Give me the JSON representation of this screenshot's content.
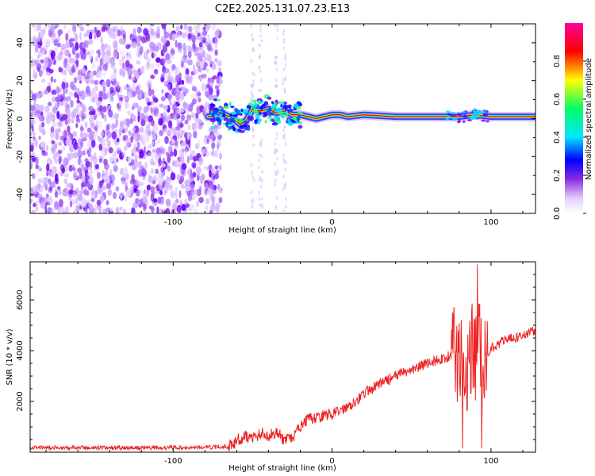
{
  "figure": {
    "title": "C2E2.2025.131.07.23.E13"
  },
  "chart_data": [
    {
      "type": "heatmap",
      "xlabel": "Height of straight line (km)",
      "ylabel": "Frequency (Hz)",
      "xlim": [
        -190,
        128
      ],
      "ylim": [
        -50,
        50
      ],
      "xticks": [
        -100,
        0,
        100
      ],
      "xtick_labels": [
        "-100",
        "0",
        "100"
      ],
      "yticks": [
        -40,
        -20,
        0,
        20,
        40
      ],
      "ytick_labels": [
        "-40",
        "-20",
        "0",
        "20",
        "40"
      ],
      "noise_region_x": [
        -190,
        -70
      ],
      "ridge": [
        {
          "x": -75,
          "f": 4
        },
        {
          "x": -70,
          "f": 3
        },
        {
          "x": -62,
          "f": 0
        },
        {
          "x": -58,
          "f": -3
        },
        {
          "x": -54,
          "f": -1
        },
        {
          "x": -50,
          "f": 5
        },
        {
          "x": -45,
          "f": 4
        },
        {
          "x": -40,
          "f": 5
        },
        {
          "x": -35,
          "f": 3
        },
        {
          "x": -30,
          "f": 4
        },
        {
          "x": -25,
          "f": 2
        },
        {
          "x": -20,
          "f": 2
        },
        {
          "x": -15,
          "f": 1
        },
        {
          "x": -10,
          "f": 0
        },
        {
          "x": -5,
          "f": 1
        },
        {
          "x": 0,
          "f": 2
        },
        {
          "x": 5,
          "f": 2
        },
        {
          "x": 10,
          "f": 1
        },
        {
          "x": 20,
          "f": 2
        },
        {
          "x": 40,
          "f": 1
        },
        {
          "x": 60,
          "f": 1
        },
        {
          "x": 80,
          "f": 1
        },
        {
          "x": 90,
          "f": 2
        },
        {
          "x": 100,
          "f": 1
        },
        {
          "x": 128,
          "f": 1
        }
      ],
      "colorbar": {
        "label": "Normalized spectral amplitude",
        "range": [
          0,
          1
        ],
        "ticks": [
          0.0,
          0.2,
          0.4,
          0.6,
          0.8
        ],
        "tick_labels": [
          "0.0",
          "0.2",
          "0.4",
          "0.6",
          "0.8"
        ],
        "colormap": [
          "#ffffff",
          "#cc99ff",
          "#6600ff",
          "#0000ff",
          "#00e5ff",
          "#00ff66",
          "#ffff00",
          "#ff0000",
          "#ff0099"
        ]
      }
    },
    {
      "type": "line",
      "xlabel": "Height of straight line (km)",
      "ylabel": "SNR (10 * v/v)",
      "xlim": [
        -190,
        128
      ],
      "ylim": [
        0,
        7500
      ],
      "xticks": [
        -100,
        0,
        100
      ],
      "xtick_labels": [
        "-100",
        "0",
        "100"
      ],
      "yticks": [
        2000,
        4000,
        6000
      ],
      "ytick_labels": [
        "2000",
        "4000",
        "6000"
      ],
      "color": "#ee2222",
      "series": [
        {
          "x": [
            -190,
            -170,
            -150,
            -130,
            -110,
            -90,
            -75,
            -65,
            -60,
            -55,
            -50,
            -45,
            -40,
            -35,
            -30,
            -25,
            -20,
            -15,
            -10,
            -5,
            0,
            5,
            10,
            20,
            30,
            40,
            50,
            60,
            70,
            75,
            78,
            80,
            82,
            84,
            86,
            88,
            90,
            92,
            94,
            96,
            98,
            100,
            105,
            110,
            115,
            120,
            125,
            128
          ],
          "values": [
            180,
            170,
            180,
            170,
            175,
            180,
            200,
            230,
            450,
            650,
            550,
            750,
            650,
            800,
            450,
            550,
            1000,
            1300,
            1350,
            1450,
            1500,
            1650,
            1800,
            2300,
            2700,
            3000,
            3250,
            3500,
            3700,
            3800,
            3900,
            3600,
            4400,
            3800,
            3000,
            4000,
            3500,
            4300,
            3700,
            3600,
            3900,
            4100,
            4300,
            4450,
            4500,
            4600,
            4750,
            4800
          ]
        }
      ]
    }
  ]
}
